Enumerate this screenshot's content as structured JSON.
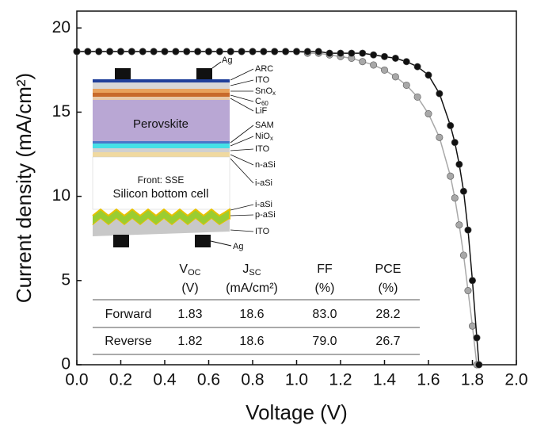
{
  "chart_data": {
    "type": "line",
    "x_label": "Voltage (V)",
    "y_label": "Current density (mA/cm²)",
    "xlim": [
      0,
      2
    ],
    "ylim": [
      0,
      21
    ],
    "xticks": [
      {
        "value": 0,
        "label": "0.0"
      },
      0.2,
      0.4,
      0.6,
      0.8,
      {
        "value": 1,
        "label": "1.0"
      },
      1.2,
      1.4,
      1.6,
      1.8,
      {
        "value": 2,
        "label": "2.0"
      }
    ],
    "yticks": [
      0,
      5,
      10,
      15,
      20
    ],
    "series": [
      {
        "name": "Forward",
        "color": "#111111",
        "x": [
          0,
          0.05,
          0.1,
          0.15,
          0.2,
          0.25,
          0.3,
          0.35,
          0.4,
          0.45,
          0.5,
          0.55,
          0.6,
          0.65,
          0.7,
          0.75,
          0.8,
          0.85,
          0.9,
          0.95,
          1.0,
          1.05,
          1.1,
          1.15,
          1.2,
          1.25,
          1.3,
          1.35,
          1.4,
          1.45,
          1.5,
          1.55,
          1.6,
          1.65,
          1.7,
          1.72,
          1.74,
          1.76,
          1.78,
          1.8,
          1.82,
          1.83
        ],
        "values": [
          18.6,
          18.6,
          18.6,
          18.6,
          18.6,
          18.6,
          18.6,
          18.6,
          18.6,
          18.6,
          18.6,
          18.6,
          18.6,
          18.6,
          18.6,
          18.6,
          18.6,
          18.6,
          18.6,
          18.6,
          18.6,
          18.6,
          18.6,
          18.5,
          18.5,
          18.5,
          18.5,
          18.4,
          18.3,
          18.2,
          18.0,
          17.7,
          17.2,
          16.1,
          14.2,
          13.2,
          11.9,
          10.3,
          8.0,
          5.0,
          1.6,
          0
        ]
      },
      {
        "name": "Reverse",
        "color": "#a8a8a8",
        "x": [
          0,
          0.05,
          0.1,
          0.15,
          0.2,
          0.25,
          0.3,
          0.35,
          0.4,
          0.45,
          0.5,
          0.55,
          0.6,
          0.65,
          0.7,
          0.75,
          0.8,
          0.85,
          0.9,
          0.95,
          1.0,
          1.05,
          1.1,
          1.15,
          1.2,
          1.25,
          1.3,
          1.35,
          1.4,
          1.45,
          1.5,
          1.55,
          1.6,
          1.65,
          1.7,
          1.72,
          1.74,
          1.76,
          1.78,
          1.8,
          1.82
        ],
        "values": [
          18.6,
          18.6,
          18.6,
          18.6,
          18.6,
          18.6,
          18.6,
          18.6,
          18.6,
          18.6,
          18.6,
          18.6,
          18.6,
          18.6,
          18.6,
          18.6,
          18.6,
          18.6,
          18.6,
          18.6,
          18.6,
          18.5,
          18.5,
          18.4,
          18.3,
          18.2,
          18.0,
          17.8,
          17.5,
          17.1,
          16.6,
          15.9,
          14.9,
          13.5,
          11.2,
          9.9,
          8.3,
          6.5,
          4.4,
          2.3,
          0
        ]
      }
    ]
  },
  "inset": {
    "top_contact": "Ag",
    "bottom_contact": "Ag",
    "layers": [
      {
        "t": "ARC"
      },
      {
        "t": "ITO"
      },
      {
        "t": "SnO",
        "sub": "x"
      },
      {
        "t": "C",
        "sub": "60"
      },
      {
        "t": "LiF"
      },
      {
        "t": "SAM"
      },
      {
        "t": "NiO",
        "sub": "x"
      },
      {
        "t": "ITO"
      },
      {
        "t": "n-aSi"
      },
      {
        "t": "i-aSi"
      },
      {
        "t": "i-aSi"
      },
      {
        "t": "p-aSi"
      },
      {
        "t": "ITO"
      }
    ],
    "perovskite": "Perovskite",
    "front": "Front: SSE",
    "silicon": "Silicon bottom cell"
  },
  "table": {
    "columns": [
      {
        "name": "V",
        "sub": "OC",
        "unit": "(V)"
      },
      {
        "name": "J",
        "sub": "SC",
        "unit": "(mA/cm²)"
      },
      {
        "name": "FF",
        "unit": "(%)"
      },
      {
        "name": "PCE",
        "unit": "(%)"
      }
    ],
    "rows": [
      [
        "Forward",
        "1.83",
        "18.6",
        "83.0",
        "28.2"
      ],
      [
        "Reverse",
        "1.82",
        "18.6",
        "79.0",
        "26.7"
      ]
    ]
  }
}
